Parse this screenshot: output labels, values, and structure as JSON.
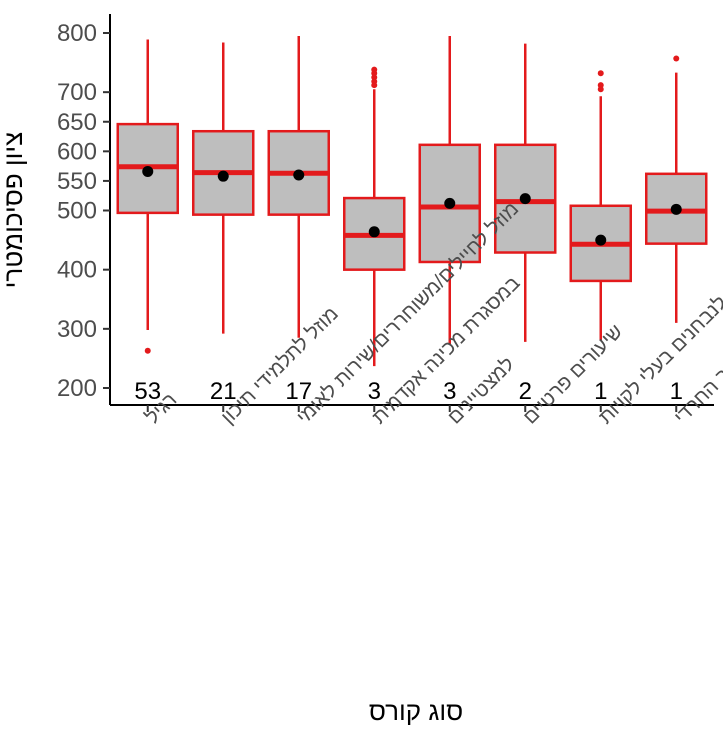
{
  "chart_data": {
    "type": "boxplot",
    "xlabel": "סוג קורס",
    "ylabel": "ציון פסיכומטרי",
    "ylim": [
      190,
      820
    ],
    "yticks": [
      200,
      300,
      400,
      500,
      550,
      600,
      650,
      700,
      800
    ],
    "grid": false,
    "colors": {
      "box_fill": "#bebebe",
      "box_stroke": "#e31a1c",
      "median": "#e31a1c",
      "mean_point": "#000000",
      "axis": "#000000"
    },
    "categories": [
      "רגיל",
      "מוזל לתלמידי תיכון",
      "מוזל לחיילים/משוחררים/שירות לאומי",
      "במסגרת מכינה אקדמית",
      "למצטיינים",
      "שיעורים פרטיים",
      "מותאם לנבחנים בעלי לקויות",
      "למגזר החרדי"
    ],
    "counts": [
      "53",
      "21",
      "17",
      "3",
      "3",
      "2",
      "1",
      "1"
    ],
    "boxes": [
      {
        "whisker_low": 298,
        "q1": 496,
        "median": 574,
        "q3": 646,
        "whisker_high": 789,
        "mean": 566,
        "outliers": [
          263
        ]
      },
      {
        "whisker_low": 292,
        "q1": 493,
        "median": 564,
        "q3": 634,
        "whisker_high": 784,
        "mean": 558,
        "outliers": []
      },
      {
        "whisker_low": 285,
        "q1": 493,
        "median": 563,
        "q3": 634,
        "whisker_high": 795,
        "mean": 560,
        "outliers": []
      },
      {
        "whisker_low": 237,
        "q1": 400,
        "median": 458,
        "q3": 521,
        "whisker_high": 705,
        "mean": 464,
        "outliers": [
          712,
          718,
          725,
          732,
          738
        ]
      },
      {
        "whisker_low": 274,
        "q1": 413,
        "median": 506,
        "q3": 611,
        "whisker_high": 795,
        "mean": 512,
        "outliers": []
      },
      {
        "whisker_low": 278,
        "q1": 429,
        "median": 515,
        "q3": 611,
        "whisker_high": 782,
        "mean": 520,
        "outliers": []
      },
      {
        "whisker_low": 280,
        "q1": 381,
        "median": 443,
        "q3": 508,
        "whisker_high": 693,
        "mean": 450,
        "outliers": [
          705,
          712,
          732
        ]
      },
      {
        "whisker_low": 310,
        "q1": 444,
        "median": 499,
        "q3": 562,
        "whisker_high": 733,
        "mean": 502,
        "outliers": [
          757
        ]
      }
    ]
  }
}
